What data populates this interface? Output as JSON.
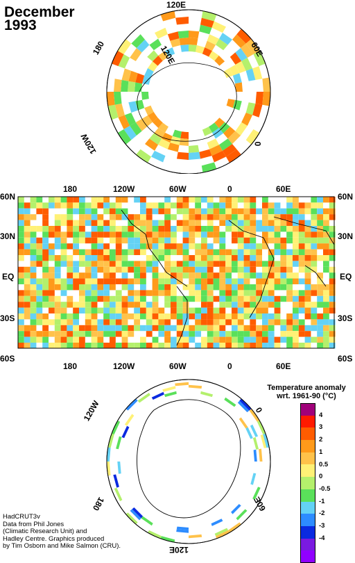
{
  "title": {
    "line1": "December",
    "line2": "1993"
  },
  "credit": {
    "line1": "HadCRUT3v",
    "line2": "Data from Phil Jones",
    "line3": "(Climatic Research Unit) and",
    "line4": "Hadley Centre.  Graphics produced",
    "line5": "by Tim Osborn and Mike Salmon (CRU)."
  },
  "north_map": {
    "labels": {
      "top": "120E",
      "upper_right": "60E",
      "right": "0",
      "lower_left": "120W",
      "upper_left": "180",
      "inner": "120E"
    }
  },
  "world_map": {
    "top_lon_labels": [
      "180",
      "120W",
      "60W",
      "0",
      "60E"
    ],
    "bottom_lon_labels": [
      "180",
      "120W",
      "60W",
      "0",
      "60E"
    ],
    "lat_labels": [
      "60N",
      "30N",
      "EQ",
      "30S",
      "60S"
    ]
  },
  "south_map": {
    "labels": {
      "upper_left": "120W",
      "upper_right": "0",
      "lower_left": "180",
      "lower_right": "60E",
      "bottom": "120E"
    }
  },
  "legend": {
    "title_line1": "Temperature anomaly",
    "title_line2": "wrt. 1961-90  (°C)",
    "ticks": [
      "4",
      "3",
      "2",
      "1",
      "0.5",
      "0",
      "-0.5",
      "-1",
      "-2",
      "-3",
      "-4"
    ],
    "colors": [
      "#a0007a",
      "#ff1a00",
      "#ff5c00",
      "#ff9a1a",
      "#ffc24a",
      "#fff176",
      "#b4f06c",
      "#5ae05a",
      "#64d2f5",
      "#2d8cff",
      "#0a2ae0",
      "#7a1ae0",
      "#9000ff"
    ]
  }
}
